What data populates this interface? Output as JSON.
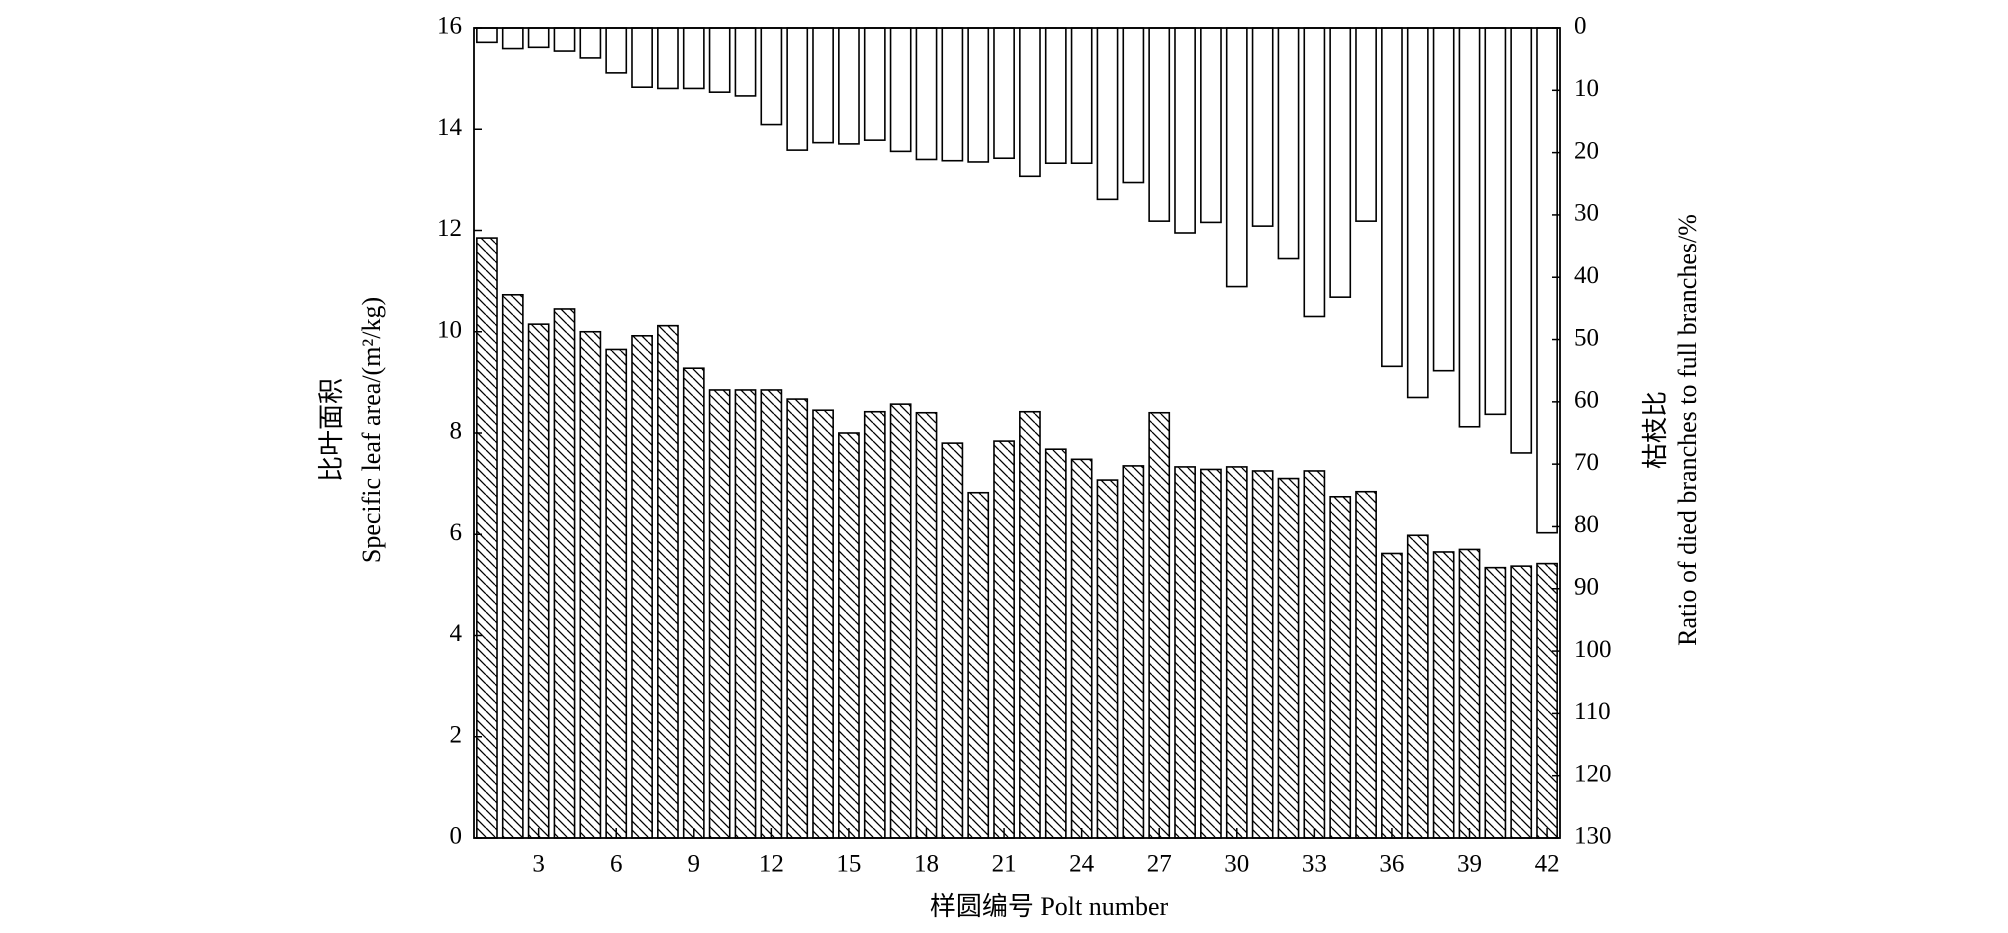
{
  "chart_data": {
    "type": "bar",
    "categories": [
      null,
      null,
      3,
      null,
      null,
      6,
      null,
      null,
      9,
      null,
      null,
      12,
      null,
      null,
      15,
      null,
      null,
      18,
      null,
      null,
      21,
      null,
      null,
      24,
      null,
      null,
      27,
      null,
      null,
      30,
      null,
      null,
      33,
      null,
      null,
      36,
      null,
      null,
      39,
      null,
      null,
      42
    ],
    "x_label": "样圆编号 Polt number",
    "y_label": [
      "比叶面积",
      "Specific leaf area/(m²/kg)"
    ],
    "y2_label": [
      "枯枝比",
      "Ratio of died branches to full branches/%"
    ],
    "series": [
      {
        "name": "Specific leaf area",
        "color": "#000000",
        "hatch": true,
        "values": [
          11.85,
          10.73,
          10.15,
          10.45,
          10.0,
          9.65,
          9.92,
          10.12,
          9.28,
          8.85,
          8.85,
          8.85,
          8.67,
          8.45,
          8.0,
          8.42,
          8.57,
          8.4,
          7.8,
          6.82,
          7.84,
          8.42,
          7.68,
          7.48,
          7.07,
          7.35,
          8.4,
          7.33,
          7.28,
          7.33,
          7.25,
          7.1,
          7.25,
          6.74,
          6.84,
          5.62,
          5.98,
          5.65,
          5.7,
          5.34,
          5.37,
          5.42
        ]
      },
      {
        "name": "Ratio of died branches",
        "color": "#000000",
        "hatch": false,
        "axis": "y2",
        "values": [
          2.3,
          3.3,
          3.1,
          3.7,
          4.8,
          7.2,
          9.5,
          9.7,
          9.7,
          10.3,
          10.9,
          15.5,
          19.6,
          18.4,
          18.6,
          18.0,
          19.8,
          21.1,
          21.3,
          21.5,
          20.9,
          23.8,
          21.7,
          21.7,
          27.5,
          24.8,
          31.0,
          32.9,
          31.2,
          41.5,
          31.8,
          37.0,
          46.3,
          43.2,
          31.0,
          54.3,
          59.3,
          55.0,
          64.0,
          62.0,
          68.2,
          81.0
        ]
      }
    ],
    "ylim": [
      0,
      16
    ],
    "yticks": [
      0,
      2,
      4,
      6,
      8,
      10,
      12,
      14,
      16
    ],
    "y2lim": [
      130,
      0
    ],
    "y2ticks": [
      0,
      10,
      20,
      30,
      40,
      50,
      60,
      70,
      80,
      90,
      100,
      110,
      120,
      130
    ],
    "grid": false
  }
}
